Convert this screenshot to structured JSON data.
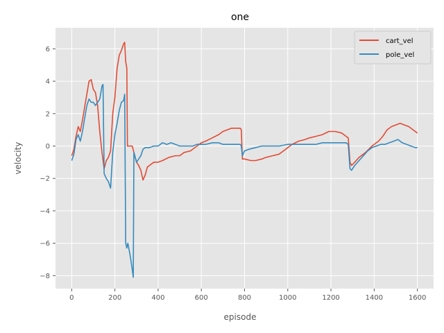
{
  "chart_data": {
    "type": "line",
    "style": "ggplot",
    "title": "one",
    "xlabel": "episode",
    "ylabel": "velocity",
    "xlim": [
      -75,
      1675
    ],
    "ylim": [
      -8.8,
      7.3
    ],
    "xticks": [
      0,
      200,
      400,
      600,
      800,
      1000,
      1200,
      1400,
      1600
    ],
    "yticks": [
      -8,
      -6,
      -4,
      -2,
      0,
      2,
      4,
      6
    ],
    "grid": true,
    "legend_position": "top-right",
    "series": [
      {
        "name": "cart_vel",
        "color": "#E24A33",
        "points": [
          [
            0,
            -0.6
          ],
          [
            10,
            -0.2
          ],
          [
            20,
            0.6
          ],
          [
            30,
            1.2
          ],
          [
            40,
            0.9
          ],
          [
            50,
            1.6
          ],
          [
            60,
            2.4
          ],
          [
            70,
            3.2
          ],
          [
            80,
            4.0
          ],
          [
            90,
            4.1
          ],
          [
            100,
            3.5
          ],
          [
            110,
            3.3
          ],
          [
            120,
            2.5
          ],
          [
            130,
            0.9
          ],
          [
            140,
            -0.4
          ],
          [
            150,
            -1.4
          ],
          [
            160,
            -0.9
          ],
          [
            170,
            -0.7
          ],
          [
            180,
            -0.3
          ],
          [
            190,
            2.0
          ],
          [
            200,
            3.0
          ],
          [
            210,
            4.8
          ],
          [
            220,
            5.6
          ],
          [
            230,
            5.9
          ],
          [
            240,
            6.3
          ],
          [
            245,
            6.4
          ],
          [
            250,
            5.2
          ],
          [
            255,
            4.8
          ],
          [
            258,
            0.0
          ],
          [
            270,
            0.0
          ],
          [
            280,
            0.0
          ],
          [
            290,
            -0.5
          ],
          [
            300,
            -1.0
          ],
          [
            310,
            -1.2
          ],
          [
            320,
            -1.5
          ],
          [
            330,
            -2.1
          ],
          [
            340,
            -1.8
          ],
          [
            350,
            -1.3
          ],
          [
            360,
            -1.2
          ],
          [
            380,
            -1.0
          ],
          [
            400,
            -1.0
          ],
          [
            420,
            -0.9
          ],
          [
            450,
            -0.7
          ],
          [
            480,
            -0.6
          ],
          [
            500,
            -0.6
          ],
          [
            520,
            -0.4
          ],
          [
            550,
            -0.3
          ],
          [
            580,
            0.0
          ],
          [
            600,
            0.2
          ],
          [
            620,
            0.3
          ],
          [
            650,
            0.5
          ],
          [
            680,
            0.7
          ],
          [
            700,
            0.9
          ],
          [
            720,
            1.0
          ],
          [
            740,
            1.1
          ],
          [
            760,
            1.1
          ],
          [
            780,
            1.1
          ],
          [
            785,
            1.0
          ],
          [
            790,
            -0.8
          ],
          [
            800,
            -0.8
          ],
          [
            830,
            -0.9
          ],
          [
            850,
            -0.9
          ],
          [
            880,
            -0.8
          ],
          [
            900,
            -0.7
          ],
          [
            930,
            -0.6
          ],
          [
            960,
            -0.5
          ],
          [
            980,
            -0.3
          ],
          [
            1000,
            -0.1
          ],
          [
            1020,
            0.1
          ],
          [
            1050,
            0.3
          ],
          [
            1080,
            0.4
          ],
          [
            1100,
            0.5
          ],
          [
            1130,
            0.6
          ],
          [
            1160,
            0.7
          ],
          [
            1190,
            0.9
          ],
          [
            1220,
            0.9
          ],
          [
            1250,
            0.8
          ],
          [
            1270,
            0.6
          ],
          [
            1280,
            0.5
          ],
          [
            1288,
            -1.0
          ],
          [
            1295,
            -1.2
          ],
          [
            1310,
            -1.0
          ],
          [
            1330,
            -0.7
          ],
          [
            1360,
            -0.4
          ],
          [
            1390,
            0.0
          ],
          [
            1420,
            0.3
          ],
          [
            1440,
            0.6
          ],
          [
            1460,
            1.0
          ],
          [
            1480,
            1.2
          ],
          [
            1500,
            1.3
          ],
          [
            1520,
            1.4
          ],
          [
            1540,
            1.3
          ],
          [
            1560,
            1.2
          ],
          [
            1580,
            1.0
          ],
          [
            1600,
            0.8
          ]
        ]
      },
      {
        "name": "pole_vel",
        "color": "#348ABD",
        "points": [
          [
            0,
            -0.9
          ],
          [
            10,
            -0.5
          ],
          [
            20,
            0.4
          ],
          [
            30,
            0.7
          ],
          [
            40,
            0.3
          ],
          [
            50,
            0.9
          ],
          [
            60,
            1.7
          ],
          [
            70,
            2.5
          ],
          [
            80,
            2.9
          ],
          [
            90,
            2.7
          ],
          [
            100,
            2.7
          ],
          [
            110,
            2.5
          ],
          [
            120,
            2.7
          ],
          [
            130,
            2.9
          ],
          [
            140,
            3.7
          ],
          [
            145,
            3.8
          ],
          [
            150,
            -1.7
          ],
          [
            160,
            -2.0
          ],
          [
            170,
            -2.2
          ],
          [
            180,
            -2.6
          ],
          [
            190,
            -0.4
          ],
          [
            200,
            0.7
          ],
          [
            210,
            1.4
          ],
          [
            220,
            2.2
          ],
          [
            230,
            2.7
          ],
          [
            240,
            2.8
          ],
          [
            245,
            3.2
          ],
          [
            250,
            -6.0
          ],
          [
            255,
            -6.3
          ],
          [
            260,
            -6.0
          ],
          [
            270,
            -6.7
          ],
          [
            280,
            -7.6
          ],
          [
            285,
            -8.1
          ],
          [
            288,
            -0.4
          ],
          [
            300,
            -1.0
          ],
          [
            310,
            -0.8
          ],
          [
            320,
            -0.6
          ],
          [
            330,
            -0.2
          ],
          [
            340,
            -0.1
          ],
          [
            360,
            -0.1
          ],
          [
            380,
            0.0
          ],
          [
            400,
            0.0
          ],
          [
            420,
            0.2
          ],
          [
            440,
            0.1
          ],
          [
            460,
            0.2
          ],
          [
            480,
            0.1
          ],
          [
            500,
            0.0
          ],
          [
            520,
            0.0
          ],
          [
            540,
            0.0
          ],
          [
            560,
            0.0
          ],
          [
            580,
            0.1
          ],
          [
            600,
            0.1
          ],
          [
            620,
            0.1
          ],
          [
            650,
            0.2
          ],
          [
            680,
            0.2
          ],
          [
            700,
            0.1
          ],
          [
            720,
            0.1
          ],
          [
            750,
            0.1
          ],
          [
            780,
            0.1
          ],
          [
            785,
            0.0
          ],
          [
            790,
            -0.6
          ],
          [
            800,
            -0.3
          ],
          [
            820,
            -0.2
          ],
          [
            850,
            -0.1
          ],
          [
            880,
            0.0
          ],
          [
            900,
            0.0
          ],
          [
            930,
            0.0
          ],
          [
            960,
            0.0
          ],
          [
            1000,
            0.1
          ],
          [
            1030,
            0.1
          ],
          [
            1060,
            0.1
          ],
          [
            1100,
            0.1
          ],
          [
            1130,
            0.1
          ],
          [
            1160,
            0.2
          ],
          [
            1190,
            0.2
          ],
          [
            1220,
            0.2
          ],
          [
            1250,
            0.2
          ],
          [
            1270,
            0.2
          ],
          [
            1280,
            0.1
          ],
          [
            1288,
            -1.4
          ],
          [
            1295,
            -1.5
          ],
          [
            1310,
            -1.2
          ],
          [
            1330,
            -0.9
          ],
          [
            1350,
            -0.6
          ],
          [
            1370,
            -0.3
          ],
          [
            1390,
            -0.1
          ],
          [
            1410,
            0.0
          ],
          [
            1430,
            0.1
          ],
          [
            1450,
            0.1
          ],
          [
            1470,
            0.2
          ],
          [
            1490,
            0.3
          ],
          [
            1510,
            0.4
          ],
          [
            1530,
            0.2
          ],
          [
            1550,
            0.1
          ],
          [
            1570,
            0.0
          ],
          [
            1590,
            -0.1
          ],
          [
            1600,
            -0.1
          ]
        ]
      }
    ]
  }
}
